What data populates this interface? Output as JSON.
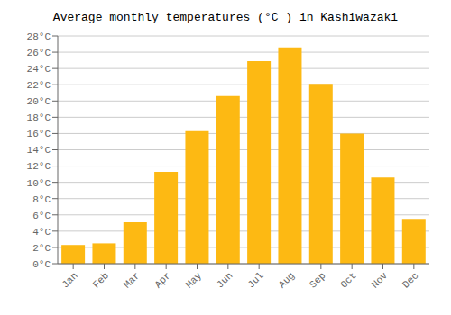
{
  "chart_data": {
    "type": "bar",
    "title": "Average monthly temperatures (°C ) in Kashiwazaki",
    "categories": [
      "Jan",
      "Feb",
      "Mar",
      "Apr",
      "May",
      "Jun",
      "Jul",
      "Aug",
      "Sep",
      "Oct",
      "Nov",
      "Dec"
    ],
    "values": [
      2.3,
      2.5,
      5.1,
      11.3,
      16.3,
      20.6,
      24.9,
      26.6,
      22.1,
      16.0,
      10.6,
      5.5
    ],
    "color": "#FDB913",
    "ylim": [
      0,
      28
    ],
    "yticks": [
      {
        "value": 0,
        "label": "0°C"
      },
      {
        "value": 2,
        "label": "2°C"
      },
      {
        "value": 4,
        "label": "4°C"
      },
      {
        "value": 6,
        "label": "6°C"
      },
      {
        "value": 8,
        "label": "8°C"
      },
      {
        "value": 10,
        "label": "10°C"
      },
      {
        "value": 12,
        "label": "12°C"
      },
      {
        "value": 14,
        "label": "14°C"
      },
      {
        "value": 16,
        "label": "16°C"
      },
      {
        "value": 18,
        "label": "18°C"
      },
      {
        "value": 20,
        "label": "20°C"
      },
      {
        "value": 22,
        "label": "22°C"
      },
      {
        "value": 24,
        "label": "24°C"
      },
      {
        "value": 26,
        "label": "26°C"
      },
      {
        "value": 28,
        "label": "28°C"
      }
    ],
    "grid": true
  }
}
